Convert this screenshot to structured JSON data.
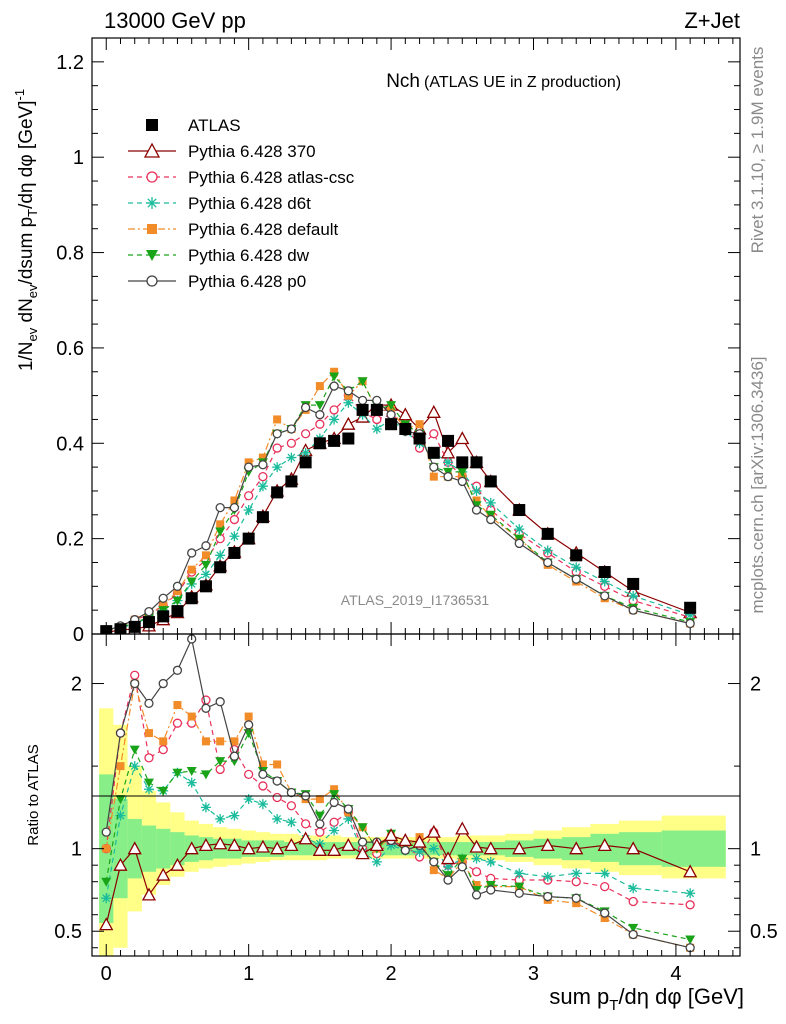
{
  "header": {
    "energy_label": "13000 GeV pp",
    "process_label": "Z+Jet",
    "side_rivet": "Rivet 3.1.10, ≥ 1.9M events",
    "side_mcplots": "mcplots.cern.ch [arXiv:1306.3436]",
    "watermark": "ATLAS_2019_I1736531"
  },
  "chart_data": [
    {
      "type": "scatter",
      "panel": "main",
      "title_main": "Nch",
      "title_sub": "(ATLAS UE in Z production)",
      "ylabel": "1/N_ev dN_ev/dsum p_T/dη dφ [GeV]^-1",
      "xlabel": "sum p_T/dη dφ [GeV]",
      "xlim": [
        -0.1,
        4.45
      ],
      "ylim": [
        0,
        1.25
      ],
      "yticks": [
        "0",
        "0.2",
        "0.4",
        "0.6",
        "0.8",
        "1",
        "1.2"
      ],
      "x": [
        0.0,
        0.1,
        0.2,
        0.3,
        0.4,
        0.5,
        0.6,
        0.7,
        0.8,
        0.9,
        1.0,
        1.1,
        1.2,
        1.3,
        1.4,
        1.5,
        1.6,
        1.7,
        1.8,
        1.9,
        2.0,
        2.1,
        2.2,
        2.3,
        2.4,
        2.5,
        2.6,
        2.7,
        2.9,
        3.1,
        3.3,
        3.5,
        3.7,
        4.1
      ],
      "series": [
        {
          "name": "ATLAS",
          "color": "#000000",
          "marker": "square",
          "line": "none",
          "values": [
            0.006,
            0.01,
            0.015,
            0.025,
            0.037,
            0.048,
            0.075,
            0.1,
            0.14,
            0.17,
            0.2,
            0.245,
            0.297,
            0.32,
            0.36,
            0.4,
            0.405,
            0.41,
            0.47,
            0.47,
            0.44,
            0.43,
            0.41,
            0.38,
            0.405,
            0.36,
            0.36,
            0.32,
            0.26,
            0.21,
            0.165,
            0.13,
            0.105,
            0.055
          ]
        },
        {
          "name": "Pythia 6.428 370",
          "color": "#8b0000",
          "marker": "triangle-open",
          "line": "solid",
          "values": [
            0.003,
            0.009,
            0.01,
            0.017,
            0.03,
            0.045,
            0.078,
            0.103,
            0.143,
            0.172,
            0.2,
            0.247,
            0.3,
            0.325,
            0.385,
            0.4,
            0.41,
            0.44,
            0.455,
            0.48,
            0.48,
            0.46,
            0.43,
            0.465,
            0.38,
            0.41,
            0.36,
            0.32,
            0.26,
            0.21,
            0.17,
            0.13,
            0.09,
            0.045
          ]
        },
        {
          "name": "Pythia 6.428 atlas-csc",
          "color": "#e8305a",
          "marker": "circle-open",
          "line": "dashed",
          "values": [
            0.006,
            0.016,
            0.03,
            0.04,
            0.06,
            0.085,
            0.13,
            0.155,
            0.2,
            0.24,
            0.29,
            0.33,
            0.39,
            0.4,
            0.42,
            0.44,
            0.47,
            0.5,
            0.465,
            0.45,
            0.46,
            0.44,
            0.39,
            0.42,
            0.36,
            0.33,
            0.31,
            0.26,
            0.21,
            0.17,
            0.13,
            0.1,
            0.07,
            0.035
          ]
        },
        {
          "name": "Pythia 6.428 d6t",
          "color": "#1abc9c",
          "marker": "star",
          "line": "dashed",
          "values": [
            0.004,
            0.012,
            0.022,
            0.034,
            0.05,
            0.07,
            0.105,
            0.125,
            0.165,
            0.205,
            0.26,
            0.31,
            0.35,
            0.37,
            0.38,
            0.41,
            0.45,
            0.485,
            0.46,
            0.43,
            0.45,
            0.425,
            0.4,
            0.38,
            0.36,
            0.34,
            0.3,
            0.275,
            0.22,
            0.175,
            0.14,
            0.11,
            0.08,
            0.04
          ]
        },
        {
          "name": "Pythia 6.428 default",
          "color": "#f28c28",
          "marker": "square-small",
          "line": "dashdot",
          "values": [
            0.006,
            0.015,
            0.03,
            0.042,
            0.06,
            0.09,
            0.135,
            0.165,
            0.23,
            0.28,
            0.36,
            0.37,
            0.45,
            0.43,
            0.47,
            0.52,
            0.55,
            0.5,
            0.53,
            0.47,
            0.47,
            0.43,
            0.44,
            0.33,
            0.33,
            0.33,
            0.28,
            0.245,
            0.2,
            0.145,
            0.11,
            0.075,
            0.05,
            0.022
          ]
        },
        {
          "name": "Pythia 6.428 dw",
          "color": "#19a319",
          "marker": "triangle-down",
          "line": "dashed",
          "values": [
            0.005,
            0.013,
            0.024,
            0.035,
            0.05,
            0.07,
            0.11,
            0.145,
            0.215,
            0.26,
            0.34,
            0.36,
            0.42,
            0.43,
            0.48,
            0.48,
            0.54,
            0.51,
            0.53,
            0.47,
            0.48,
            0.44,
            0.42,
            0.35,
            0.34,
            0.34,
            0.27,
            0.25,
            0.2,
            0.15,
            0.115,
            0.08,
            0.055,
            0.025
          ]
        },
        {
          "name": "Pythia 6.428 p0",
          "color": "#444444",
          "marker": "circle-open",
          "line": "solid",
          "values": [
            0.007,
            0.017,
            0.03,
            0.047,
            0.075,
            0.1,
            0.17,
            0.185,
            0.265,
            0.265,
            0.35,
            0.355,
            0.42,
            0.43,
            0.475,
            0.46,
            0.52,
            0.51,
            0.49,
            0.49,
            0.46,
            0.425,
            0.42,
            0.35,
            0.33,
            0.32,
            0.26,
            0.24,
            0.19,
            0.15,
            0.115,
            0.08,
            0.05,
            0.022
          ]
        }
      ]
    },
    {
      "type": "line",
      "panel": "ratio",
      "ylabel": "Ratio to ATLAS",
      "xlabel": "sum p_T/dη dφ [GeV]",
      "xlim": [
        -0.1,
        4.45
      ],
      "ylim": [
        0.35,
        2.3
      ],
      "yticks": [
        "0.5",
        "1",
        "2"
      ],
      "xticks": [
        "0",
        "1",
        "2",
        "3",
        "4"
      ],
      "x": [
        0.0,
        0.1,
        0.2,
        0.3,
        0.4,
        0.5,
        0.6,
        0.7,
        0.8,
        0.9,
        1.0,
        1.1,
        1.2,
        1.3,
        1.4,
        1.5,
        1.6,
        1.7,
        1.8,
        1.9,
        2.0,
        2.1,
        2.2,
        2.3,
        2.4,
        2.5,
        2.6,
        2.7,
        2.9,
        3.1,
        3.3,
        3.5,
        3.7,
        4.1
      ],
      "band_edges": [
        -0.05,
        0.05,
        0.15,
        0.25,
        0.35,
        0.45,
        0.55,
        0.65,
        0.75,
        0.85,
        0.95,
        1.05,
        1.15,
        1.25,
        1.35,
        1.45,
        1.55,
        1.65,
        1.75,
        1.85,
        1.95,
        2.05,
        2.15,
        2.25,
        2.35,
        2.45,
        2.55,
        2.65,
        2.8,
        3.0,
        3.2,
        3.4,
        3.6,
        3.9,
        4.35
      ],
      "band_stat": [
        [
          0.55,
          1.45
        ],
        [
          0.7,
          1.3
        ],
        [
          0.82,
          1.18
        ],
        [
          0.86,
          1.14
        ],
        [
          0.88,
          1.12
        ],
        [
          0.9,
          1.1
        ],
        [
          0.92,
          1.08
        ],
        [
          0.93,
          1.07
        ],
        [
          0.94,
          1.06
        ],
        [
          0.94,
          1.06
        ],
        [
          0.95,
          1.05
        ],
        [
          0.95,
          1.05
        ],
        [
          0.95,
          1.05
        ],
        [
          0.96,
          1.04
        ],
        [
          0.96,
          1.04
        ],
        [
          0.96,
          1.04
        ],
        [
          0.96,
          1.04
        ],
        [
          0.96,
          1.04
        ],
        [
          0.96,
          1.04
        ],
        [
          0.96,
          1.04
        ],
        [
          0.96,
          1.04
        ],
        [
          0.96,
          1.04
        ],
        [
          0.96,
          1.04
        ],
        [
          0.96,
          1.04
        ],
        [
          0.96,
          1.04
        ],
        [
          0.96,
          1.04
        ],
        [
          0.96,
          1.04
        ],
        [
          0.96,
          1.04
        ],
        [
          0.95,
          1.05
        ],
        [
          0.94,
          1.06
        ],
        [
          0.93,
          1.07
        ],
        [
          0.92,
          1.09
        ],
        [
          0.9,
          1.1
        ],
        [
          0.89,
          1.11
        ]
      ],
      "band_total": [
        [
          0.35,
          1.85
        ],
        [
          0.4,
          1.75
        ],
        [
          0.62,
          1.5
        ],
        [
          0.72,
          1.35
        ],
        [
          0.78,
          1.28
        ],
        [
          0.83,
          1.22
        ],
        [
          0.86,
          1.17
        ],
        [
          0.88,
          1.15
        ],
        [
          0.89,
          1.13
        ],
        [
          0.9,
          1.12
        ],
        [
          0.91,
          1.11
        ],
        [
          0.92,
          1.1
        ],
        [
          0.93,
          1.09
        ],
        [
          0.93,
          1.09
        ],
        [
          0.93,
          1.08
        ],
        [
          0.93,
          1.08
        ],
        [
          0.94,
          1.08
        ],
        [
          0.94,
          1.07
        ],
        [
          0.94,
          1.07
        ],
        [
          0.94,
          1.07
        ],
        [
          0.94,
          1.07
        ],
        [
          0.94,
          1.07
        ],
        [
          0.94,
          1.07
        ],
        [
          0.94,
          1.07
        ],
        [
          0.94,
          1.07
        ],
        [
          0.93,
          1.08
        ],
        [
          0.93,
          1.08
        ],
        [
          0.93,
          1.08
        ],
        [
          0.92,
          1.09
        ],
        [
          0.9,
          1.11
        ],
        [
          0.88,
          1.13
        ],
        [
          0.86,
          1.15
        ],
        [
          0.84,
          1.17
        ],
        [
          0.82,
          1.2
        ]
      ],
      "series": [
        {
          "name": "Pythia 6.428 370",
          "color": "#8b0000",
          "marker": "triangle-open",
          "line": "solid",
          "values": [
            0.54,
            0.9,
            1.0,
            0.72,
            0.84,
            0.9,
            1.0,
            1.02,
            1.03,
            1.02,
            1.0,
            1.01,
            1.0,
            1.02,
            1.06,
            0.99,
            0.99,
            1.02,
            0.97,
            1.02,
            1.08,
            1.05,
            1.04,
            1.1,
            0.94,
            1.12,
            1.01,
            1.0,
            1.0,
            1.02,
            1.0,
            1.02,
            1.0,
            0.86
          ]
        },
        {
          "name": "Pythia 6.428 atlas-csc",
          "color": "#e8305a",
          "marker": "circle-open",
          "line": "dashed",
          "values": [
            1.0,
            1.7,
            2.05,
            1.55,
            1.6,
            1.76,
            1.76,
            1.9,
            1.48,
            1.6,
            1.45,
            1.38,
            1.31,
            1.26,
            1.15,
            1.1,
            1.16,
            1.22,
            1.0,
            0.97,
            1.04,
            1.02,
            0.95,
            1.1,
            0.9,
            0.92,
            0.86,
            0.82,
            0.81,
            0.81,
            0.8,
            0.77,
            0.68,
            0.66
          ]
        },
        {
          "name": "Pythia 6.428 d6t",
          "color": "#1abc9c",
          "marker": "star",
          "line": "dashed",
          "values": [
            0.7,
            1.2,
            1.5,
            1.36,
            1.35,
            1.46,
            1.4,
            1.25,
            1.18,
            1.2,
            1.3,
            1.27,
            1.18,
            1.16,
            1.06,
            1.03,
            1.11,
            1.18,
            0.98,
            0.92,
            1.02,
            0.99,
            0.98,
            1.0,
            0.89,
            0.94,
            0.94,
            0.92,
            0.85,
            0.83,
            0.85,
            0.85,
            0.76,
            0.73
          ]
        },
        {
          "name": "Pythia 6.428 default",
          "color": "#f28c28",
          "marker": "square-small",
          "line": "dashdot",
          "values": [
            1.0,
            1.5,
            2.0,
            1.7,
            1.65,
            1.87,
            1.8,
            1.65,
            1.65,
            1.65,
            1.8,
            1.51,
            1.51,
            1.34,
            1.3,
            1.3,
            1.36,
            1.22,
            1.13,
            1.0,
            1.07,
            1.0,
            1.07,
            0.87,
            0.82,
            0.92,
            0.78,
            0.77,
            0.77,
            0.69,
            0.67,
            0.58,
            0.48,
            0.4
          ]
        },
        {
          "name": "Pythia 6.428 dw",
          "color": "#19a319",
          "marker": "triangle-down",
          "line": "dashed",
          "values": [
            0.8,
            1.3,
            1.6,
            1.4,
            1.35,
            1.46,
            1.47,
            1.45,
            1.53,
            1.53,
            1.7,
            1.47,
            1.41,
            1.34,
            1.33,
            1.2,
            1.33,
            1.24,
            1.13,
            1.0,
            1.09,
            1.02,
            1.02,
            0.92,
            0.84,
            0.94,
            0.75,
            0.78,
            0.77,
            0.71,
            0.7,
            0.62,
            0.52,
            0.45
          ]
        },
        {
          "name": "Pythia 6.428 p0",
          "color": "#444444",
          "marker": "circle-open",
          "line": "solid",
          "values": [
            1.1,
            1.7,
            2.0,
            1.88,
            2.0,
            2.08,
            2.27,
            1.85,
            1.89,
            1.56,
            1.75,
            1.45,
            1.41,
            1.34,
            1.32,
            1.15,
            1.28,
            1.24,
            1.04,
            1.04,
            1.05,
            0.99,
            1.02,
            0.92,
            0.81,
            0.89,
            0.72,
            0.75,
            0.73,
            0.71,
            0.7,
            0.61,
            0.48,
            0.4
          ]
        }
      ]
    }
  ]
}
